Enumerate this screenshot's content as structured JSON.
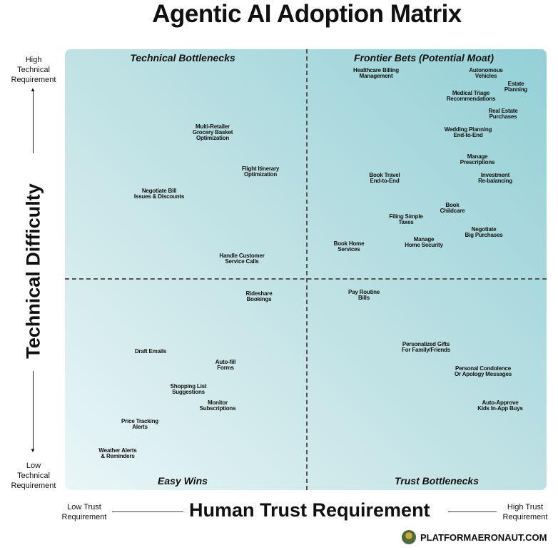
{
  "title": "Agentic AI Adoption Matrix",
  "y_axis": {
    "label": "Technical Difficulty",
    "high": "High\nTechnical\nRequirement",
    "low": "Low\nTechnical\nRequirement"
  },
  "x_axis": {
    "label": "Human Trust Requirement",
    "low": "Low Trust\nRequirement",
    "high": "High Trust\nRequirement"
  },
  "quadrants": {
    "top_left": "Technical Bottlenecks",
    "top_right": "Frontier Bets (Potential Moat)",
    "bottom_left": "Easy Wins",
    "bottom_right": "Trust Bottlenecks"
  },
  "items": [
    "Healthcare Billing\nManagement",
    "Autonomous\nVehicles",
    "Estate\nPlanning",
    "Medical Triage\nRecommendations",
    "Real Estate\nPurchases",
    "Wedding Planning\nEnd-to-End",
    "Manage\nPrescriptions",
    "Book Travel\nEnd-to-End",
    "Investment\nRe-balancing",
    "Book\nChildcare",
    "Filing Simple\nTaxes",
    "Negotiate\nBig Purchases",
    "Manage\nHome Security",
    "Book Home\nServices",
    "Multi-Retailer\nGrocery Basket\nOptimization",
    "Flight Itinerary\nOptimization",
    "Negotiate Bill\nIssues & Discounts",
    "Handle Customer\nService Calls",
    "Rideshare\nBookings",
    "Draft Emails",
    "Auto-fill\nForms",
    "Shopping List\nSuggestions",
    "Monitor\nSubscriptions",
    "Price Tracking\nAlerts",
    "Weather Alerts\n& Reminders",
    "Pay Routine\nBills",
    "Personalized Gifts\nFor Family/Friends",
    "Personal Condolence\nOr Apology Messages",
    "Auto-Approve\nKids In-App Buys"
  ],
  "brand": "PLATFORMAERONAUT.COM"
}
